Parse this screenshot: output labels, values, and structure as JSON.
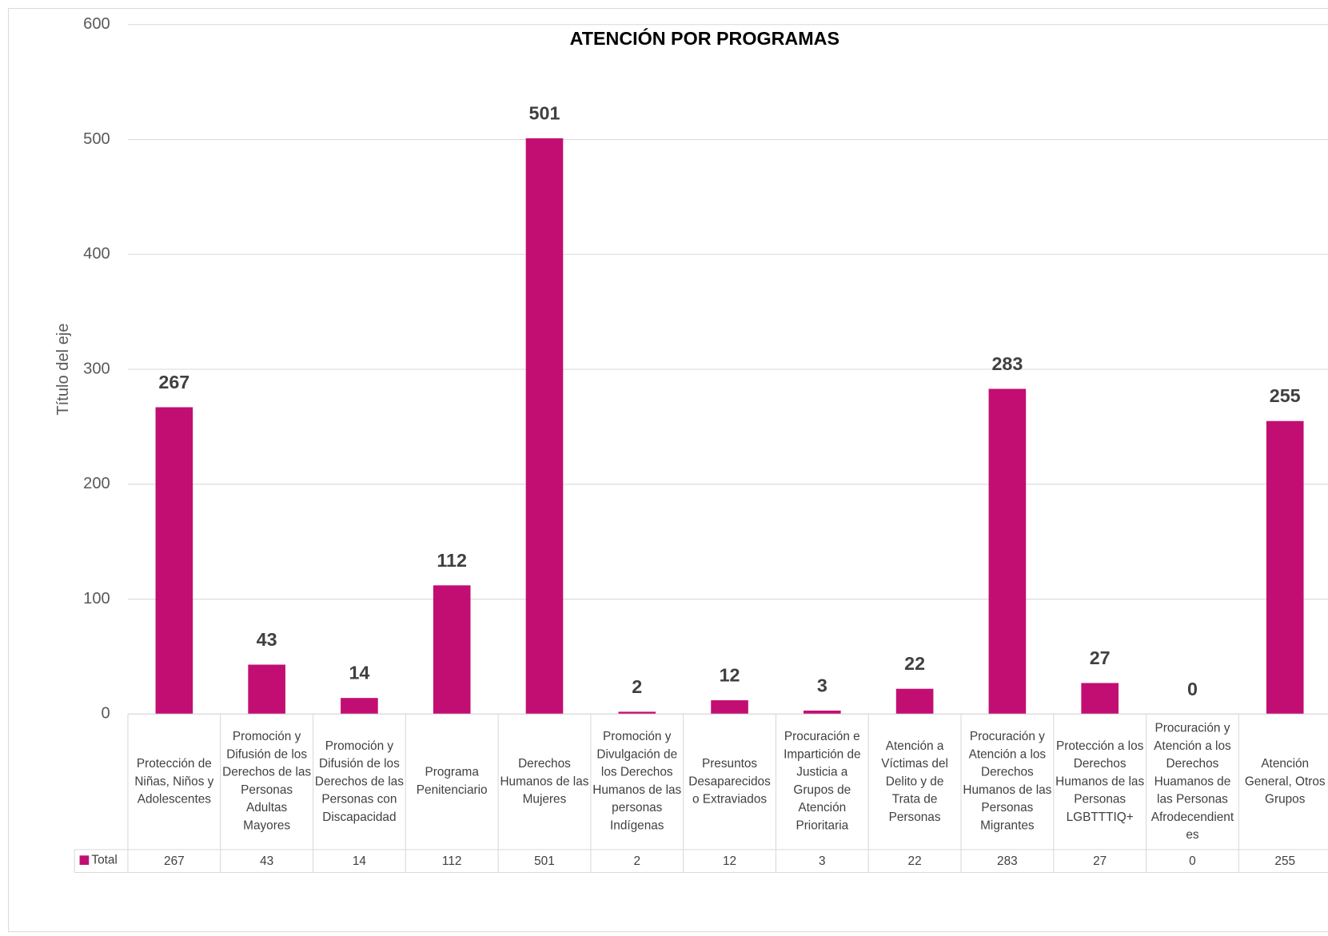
{
  "chart_data": {
    "type": "bar",
    "title": "ATENCIÓN POR PROGRAMAS",
    "y_axis_label": "Título del eje",
    "categories": [
      "Protección de Niñas, Niños y Adolescentes",
      "Promoción y Difusión de los Derechos de las Personas Adultas Mayores",
      "Promoción y Difusión de los Derechos de las Personas con Discapacidad",
      "Programa Penitenciario",
      "Derechos Humanos de las Mujeres",
      "Promoción y Divulgación de los Derechos Humanos de las personas Indígenas",
      "Presuntos Desaparecidos o Extraviados",
      "Procuración e Impartición de Justicia a Grupos de Atención Prioritaria",
      "Atención a Víctimas del Delito y de Trata de Personas",
      "Procuración y Atención a los Derechos Humanos de las Personas Migrantes",
      "Protección a los Derechos Humanos de las Personas LGBTTTIQ+",
      "Procuración y Atención a los Derechos Huamanos de las Personas Afrodecendientes",
      "Atención General, Otros Grupos"
    ],
    "series": [
      {
        "name": "Total",
        "color": "#c20e72",
        "values": [
          267,
          43,
          14,
          112,
          501,
          2,
          12,
          3,
          22,
          283,
          27,
          0,
          255
        ]
      }
    ],
    "ylim": [
      0,
      600
    ],
    "yticks": [
      0,
      100,
      200,
      300,
      400,
      500,
      600
    ],
    "grid": true,
    "data_table": true
  }
}
